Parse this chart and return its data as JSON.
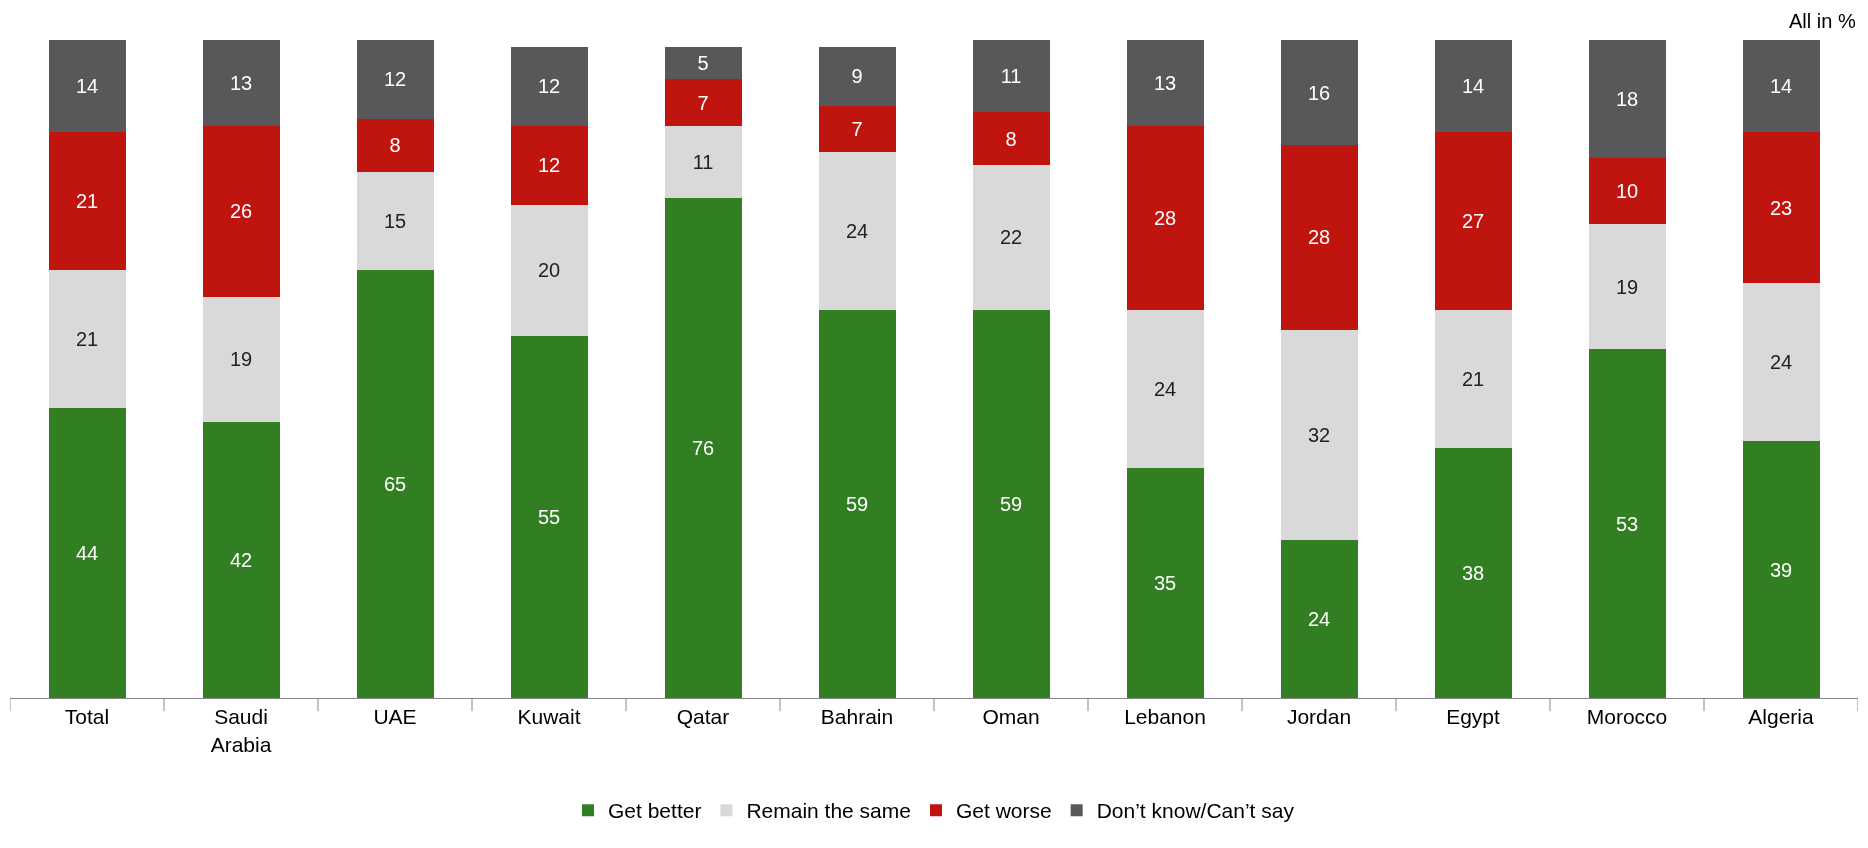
{
  "chart_data": {
    "type": "bar",
    "stacked": true,
    "data_labels": true,
    "legend": "bottom",
    "categories": [
      "Total",
      "Saudi\nArabia",
      "UAE",
      "Kuwait",
      "Qatar",
      "Bahrain",
      "Oman",
      "Lebanon",
      "Jordan",
      "Egypt",
      "Morocco",
      "Algeria"
    ],
    "series": [
      {
        "name": "Get better",
        "color": "#317f22",
        "values": [
          44,
          42,
          65,
          55,
          76,
          59,
          59,
          35,
          24,
          38,
          53,
          39
        ]
      },
      {
        "name": "Remain the same",
        "color": "#d9d9d9",
        "values": [
          21,
          19,
          15,
          20,
          11,
          24,
          22,
          24,
          32,
          21,
          19,
          24
        ]
      },
      {
        "name": "Get worse",
        "color": "#c0140f",
        "values": [
          21,
          26,
          8,
          12,
          7,
          7,
          8,
          28,
          28,
          27,
          10,
          23
        ]
      },
      {
        "name": "Don’t know/Can’t say",
        "color": "#58585a",
        "values": [
          14,
          13,
          12,
          12,
          5,
          9,
          11,
          13,
          16,
          14,
          18,
          14
        ]
      }
    ],
    "annotations": [
      "All in %"
    ]
  }
}
